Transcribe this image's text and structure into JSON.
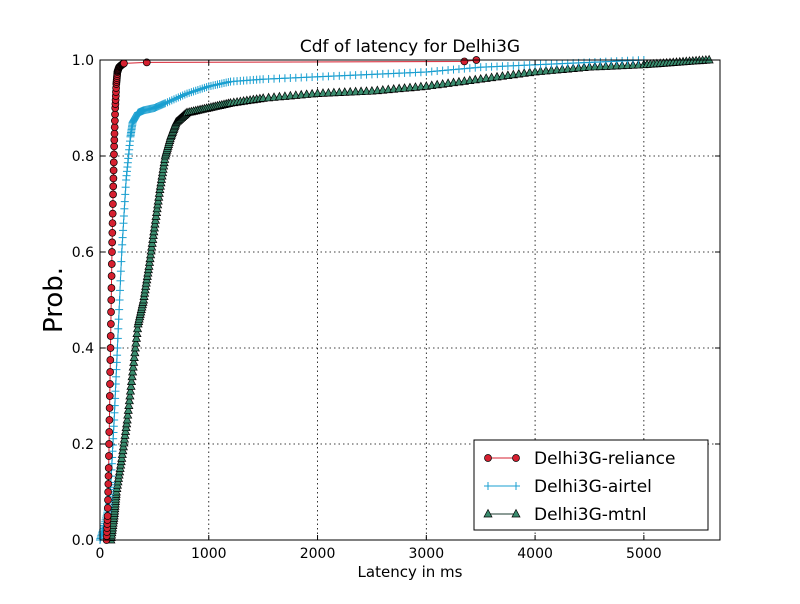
{
  "chart_data": {
    "type": "line",
    "title": "Cdf of latency for Delhi3G",
    "xlabel": "Latency in ms",
    "ylabel": "Prob.",
    "xlim": [
      0,
      5700
    ],
    "ylim": [
      0,
      1.0
    ],
    "x_ticks": [
      0,
      1000,
      2000,
      3000,
      4000,
      5000
    ],
    "y_ticks": [
      0.0,
      0.2,
      0.4,
      0.6,
      0.8,
      1.0
    ],
    "x_tick_labels": [
      "0",
      "1000",
      "2000",
      "3000",
      "4000",
      "5000"
    ],
    "y_tick_labels": [
      "0.0",
      "0.2",
      "0.4",
      "0.6",
      "0.8",
      "1.0"
    ],
    "grid": true,
    "legend_position": "lower-right",
    "series": [
      {
        "name": "Delhi3G-reliance",
        "color": "#d62030",
        "marker": "circle",
        "x": [
          60,
          70,
          80,
          90,
          100,
          110,
          120,
          130,
          140,
          150,
          160,
          175,
          200,
          220,
          430,
          3350,
          3460
        ],
        "y": [
          0.0,
          0.05,
          0.15,
          0.3,
          0.45,
          0.6,
          0.72,
          0.82,
          0.9,
          0.95,
          0.975,
          0.985,
          0.99,
          0.993,
          0.995,
          0.997,
          1.0
        ]
      },
      {
        "name": "Delhi3G-airtel",
        "color": "#1a9fd0",
        "marker": "plus",
        "x": [
          0,
          40,
          80,
          100,
          130,
          160,
          200,
          240,
          280,
          300,
          350,
          400,
          500,
          600,
          800,
          1000,
          1200,
          1500,
          2000,
          2500,
          3000,
          3500,
          4000,
          4500,
          5000
        ],
        "y": [
          0.0,
          0.03,
          0.07,
          0.12,
          0.25,
          0.4,
          0.6,
          0.75,
          0.84,
          0.87,
          0.89,
          0.895,
          0.9,
          0.91,
          0.93,
          0.945,
          0.955,
          0.96,
          0.965,
          0.97,
          0.975,
          0.985,
          0.99,
          0.995,
          1.0
        ]
      },
      {
        "name": "Delhi3G-mtnl",
        "color": "#3a8c6e",
        "marker": "triangle",
        "x": [
          100,
          130,
          150,
          200,
          250,
          300,
          350,
          400,
          450,
          500,
          550,
          600,
          650,
          700,
          800,
          1000,
          1200,
          1500,
          2000,
          2500,
          3000,
          3500,
          4000,
          4500,
          5000,
          5300,
          5600
        ],
        "y": [
          0.0,
          0.05,
          0.1,
          0.17,
          0.25,
          0.35,
          0.45,
          0.5,
          0.57,
          0.65,
          0.73,
          0.8,
          0.84,
          0.87,
          0.89,
          0.9,
          0.91,
          0.92,
          0.93,
          0.935,
          0.945,
          0.96,
          0.975,
          0.985,
          0.99,
          0.995,
          1.0
        ]
      }
    ]
  }
}
